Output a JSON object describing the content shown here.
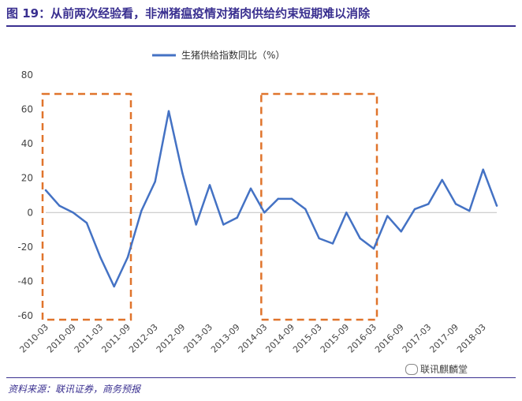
{
  "title": "图 19：从前两次经验看，非洲猪瘟疫情对猪肉供给约束短期难以消除",
  "source": "资料来源：联讯证券，商务预报",
  "watermark": "联讯麒麟堂",
  "colors": {
    "line": "#4472c4",
    "highlight": "#e0742c",
    "title": "#3a3090"
  },
  "chart_data": {
    "type": "line",
    "title": "",
    "xlabel": "",
    "ylabel": "",
    "ylim": [
      -60,
      80
    ],
    "yticks": [
      80,
      60,
      40,
      20,
      0,
      -20,
      -40,
      -60
    ],
    "grid": false,
    "legend_position": "top",
    "x_tick_labels": [
      "2010-03",
      "2010-09",
      "2011-03",
      "2011-09",
      "2012-03",
      "2012-09",
      "2013-03",
      "2013-09",
      "2014-03",
      "2014-09",
      "2015-03",
      "2015-09",
      "2016-03",
      "2016-09",
      "2017-03",
      "2017-09",
      "2018-03"
    ],
    "series": [
      {
        "name": "生猪供给指数同比（%）",
        "color": "#4472c4",
        "x": [
          "2010-03",
          "2010-06",
          "2010-09",
          "2010-12",
          "2011-03",
          "2011-06",
          "2011-09",
          "2011-12",
          "2012-03",
          "2012-06",
          "2012-09",
          "2012-12",
          "2013-03",
          "2013-06",
          "2013-09",
          "2013-12",
          "2014-03",
          "2014-06",
          "2014-09",
          "2014-12",
          "2015-03",
          "2015-06",
          "2015-09",
          "2015-12",
          "2016-03",
          "2016-06",
          "2016-09",
          "2016-12",
          "2017-03",
          "2017-06",
          "2017-09",
          "2017-12",
          "2018-03",
          "2018-06"
        ],
        "values": [
          13,
          4,
          0,
          -6,
          -26,
          -43,
          -26,
          1,
          18,
          59,
          23,
          -7,
          16,
          -7,
          -3,
          14,
          0,
          8,
          8,
          2,
          -15,
          -18,
          0,
          -15,
          -21,
          -2,
          -11,
          2,
          5,
          19,
          5,
          1,
          25,
          4
        ]
      }
    ],
    "annotations": [
      {
        "type": "dashed-box",
        "x_from": "2010-03",
        "x_to": "2011-09"
      },
      {
        "type": "dashed-box",
        "x_from": "2014-03",
        "x_to": "2016-03"
      }
    ]
  }
}
